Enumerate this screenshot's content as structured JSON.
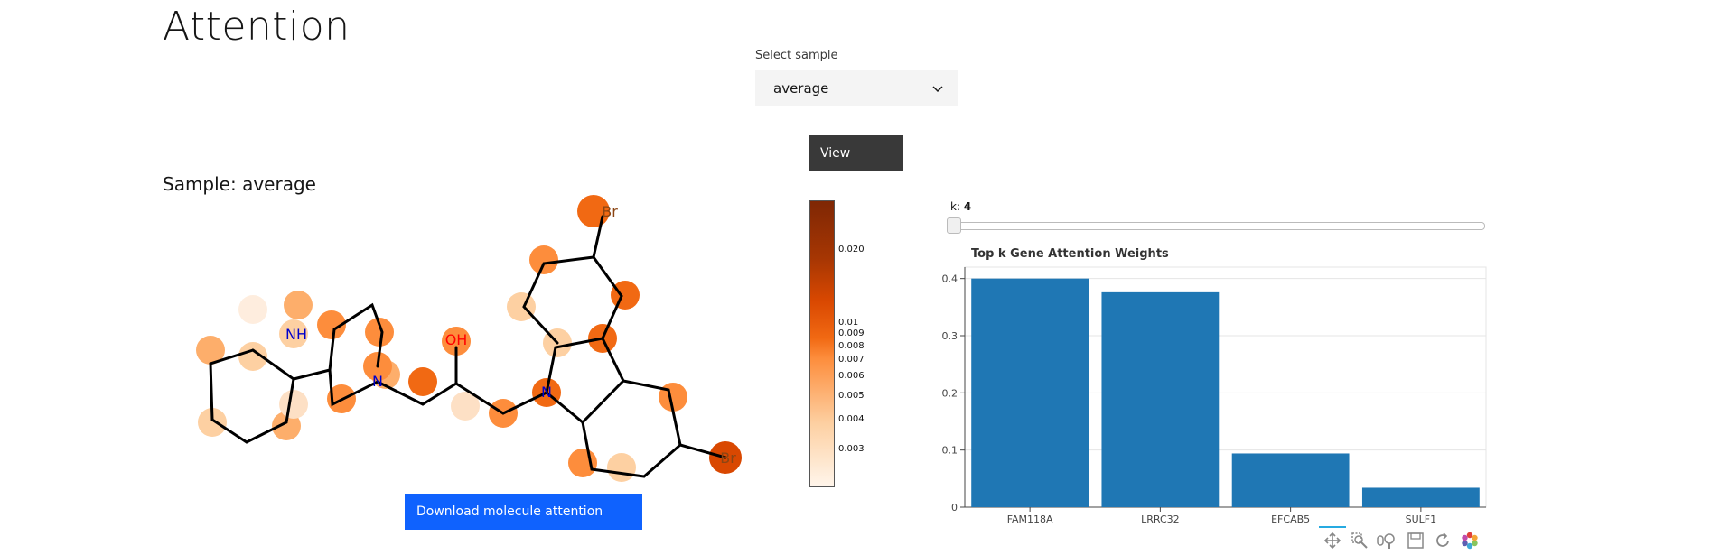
{
  "page": {
    "title": "Attention"
  },
  "sample_select": {
    "label": "Select sample",
    "value": "average"
  },
  "view_button": {
    "label": "View"
  },
  "sample_heading": "Sample: average",
  "molecule": {
    "atom_labels": [
      "NH",
      "N",
      "OH",
      "N",
      "Br",
      "Br"
    ]
  },
  "download_button": {
    "label": "Download molecule attention"
  },
  "colorbar": {
    "ticks": [
      "0.020",
      "0.01",
      "0.009",
      "0.008",
      "0.007",
      "0.006",
      "0.005",
      "0.004",
      "0.003"
    ],
    "colors": {
      "low": "#fff5eb",
      "mid": "#fd8d3c",
      "high": "#7f2704"
    }
  },
  "slider": {
    "label": "k:",
    "value": "4"
  },
  "chart_data": {
    "type": "bar",
    "title": "Top k Gene Attention Weights",
    "categories": [
      "FAM118A",
      "LRRC32",
      "EFCAB5",
      "SULF1"
    ],
    "values": [
      0.4,
      0.376,
      0.094,
      0.034
    ],
    "ylim": [
      0,
      0.42
    ],
    "yticks": [
      "0",
      "0.1",
      "0.2",
      "0.3",
      "0.4"
    ],
    "grid": true,
    "bar_color": "#1f77b4"
  },
  "toolbar": {
    "tools": [
      "pan-icon",
      "box-zoom-icon",
      "wheel-zoom-icon",
      "save-icon",
      "reset-icon",
      "bokeh-logo-icon"
    ]
  }
}
